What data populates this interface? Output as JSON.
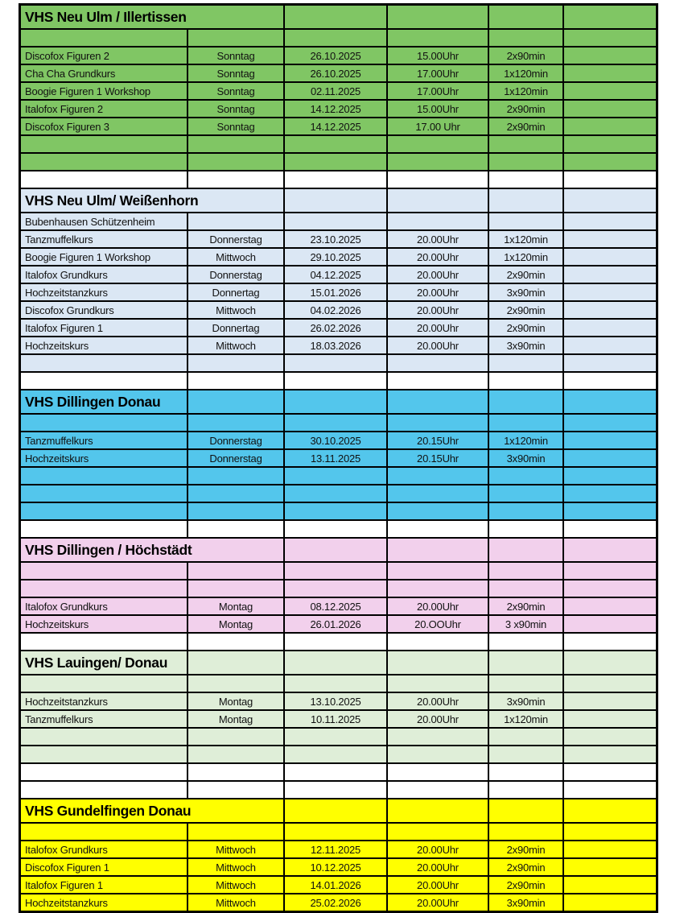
{
  "document": {
    "kind": "course-schedule-table"
  },
  "colors": {
    "border": "#000000",
    "page_background": "#ffffff"
  },
  "table": {
    "column_roles": [
      "course",
      "weekday",
      "date",
      "time",
      "duration",
      "notes"
    ],
    "sections": [
      {
        "title": "VHS Neu Ulm / Illertissen",
        "fill": "#80C664",
        "title_colspan": 2,
        "rows": [
          {
            "cells": [
              "",
              "",
              "",
              "",
              "",
              ""
            ]
          },
          {
            "cells": [
              "Discofox Figuren 2",
              "Sonntag",
              "26.10.2025",
              "15.00Uhr",
              "2x90min",
              ""
            ]
          },
          {
            "cells": [
              "Cha Cha Grundkurs",
              "Sonntag",
              "26.10.2025",
              "17.00Uhr",
              "1x120min",
              ""
            ]
          },
          {
            "cells": [
              "Boogie Figuren 1 Workshop",
              "Sonntag",
              "02.11.2025",
              "17.00Uhr",
              "1x120min",
              ""
            ]
          },
          {
            "cells": [
              "Italofox Figuren 2",
              "Sonntag",
              "14.12.2025",
              "15.00Uhr",
              "2x90min",
              ""
            ]
          },
          {
            "cells": [
              "Discofox Figuren 3",
              "Sonntag",
              "14.12.2025",
              "17.00 Uhr",
              "2x90min",
              ""
            ]
          },
          {
            "cells": [
              "",
              "",
              "",
              "",
              "",
              ""
            ]
          },
          {
            "cells": [
              "",
              "",
              "",
              "",
              "",
              ""
            ]
          }
        ],
        "white_rows_after": 1
      },
      {
        "title": "VHS Neu Ulm/ Weißenhorn",
        "fill": "#DBE7F4",
        "title_colspan": 2,
        "rows": [
          {
            "cells": [
              "Bubenhausen Schützenheim",
              "",
              "",
              "",
              "",
              ""
            ]
          },
          {
            "cells": [
              "Tanzmuffelkurs",
              "Donnerstag",
              "23.10.2025",
              "20.00Uhr",
              "1x120min",
              ""
            ]
          },
          {
            "cells": [
              "Boogie Figuren 1 Workshop",
              "Mittwoch",
              "29.10.2025",
              "20.00Uhr",
              "1x120min",
              ""
            ]
          },
          {
            "cells": [
              "Italofox Grundkurs",
              "Donnerstag",
              "04.12.2025",
              "20.00Uhr",
              "2x90min",
              ""
            ]
          },
          {
            "cells": [
              "Hochzeitstanzkurs",
              "Donnertag",
              "15.01.2026",
              "20.00Uhr",
              "3x90min",
              ""
            ]
          },
          {
            "cells": [
              "Discofox Grundkurs",
              "Mittwoch",
              "04.02.2026",
              "20.00Uhr",
              "2x90min",
              ""
            ]
          },
          {
            "cells": [
              "Italofox Figuren 1",
              "Donnertag",
              "26.02.2026",
              "20.00Uhr",
              "2x90min",
              ""
            ]
          },
          {
            "cells": [
              "Hochzeitskurs",
              "Mittwoch",
              "18.03.2026",
              "20.00Uhr",
              "3x90min",
              ""
            ]
          },
          {
            "cells": [
              "",
              "",
              "",
              "",
              "",
              ""
            ]
          }
        ],
        "white_rows_after": 1
      },
      {
        "title": "VHS Dillingen Donau",
        "fill": "#53C6EC",
        "title_colspan": 1,
        "rows": [
          {
            "cells": [
              "",
              "",
              "",
              "",
              "",
              ""
            ]
          },
          {
            "cells": [
              "Tanzmuffelkurs",
              "Donnerstag",
              "30.10.2025",
              "20.15Uhr",
              "1x120min",
              ""
            ]
          },
          {
            "cells": [
              "Hochzeitskurs",
              "Donnerstag",
              "13.11.2025",
              "20.15Uhr",
              "3x90min",
              ""
            ]
          },
          {
            "cells": [
              "",
              "",
              "",
              "",
              "",
              ""
            ]
          },
          {
            "cells": [
              "",
              "",
              "",
              "",
              "",
              ""
            ]
          },
          {
            "cells": [
              "",
              "",
              "",
              "",
              "",
              ""
            ]
          }
        ],
        "white_rows_after": 1
      },
      {
        "title": "VHS Dillingen / Höchstädt",
        "fill": "#F2D0EC",
        "title_colspan": 2,
        "rows": [
          {
            "cells": [
              "",
              "",
              "",
              "",
              "",
              ""
            ]
          },
          {
            "cells": [
              "",
              "",
              "",
              "",
              "",
              ""
            ]
          },
          {
            "cells": [
              "Italofox Grundkurs",
              "Montag",
              "08.12.2025",
              "20.00Uhr",
              "2x90min",
              ""
            ]
          },
          {
            "cells": [
              "Hochzeitskurs",
              "Montag",
              "26.01.2026",
              "20.OOUhr",
              "3 x90min",
              ""
            ]
          }
        ],
        "white_rows_after": 1
      },
      {
        "title": "VHS Lauingen/ Donau",
        "fill": "#DFEED8",
        "title_colspan": 1,
        "rows": [
          {
            "cells": [
              "",
              "",
              "",
              "",
              "",
              ""
            ]
          },
          {
            "cells": [
              "Hochzeitstanzkurs",
              "Montag",
              "13.10.2025",
              "20.00Uhr",
              "3x90min",
              ""
            ]
          },
          {
            "cells": [
              "Tanzmuffelkurs",
              "Montag",
              "10.11.2025",
              "20.00Uhr",
              "1x120min",
              ""
            ]
          },
          {
            "cells": [
              "",
              "",
              "",
              "",
              "",
              ""
            ]
          },
          {
            "cells": [
              "",
              "",
              "",
              "",
              "",
              ""
            ]
          }
        ],
        "white_rows_after": 2
      },
      {
        "title": "VHS Gundelfingen Donau",
        "fill": "#FFFF00",
        "title_colspan": 2,
        "rows": [
          {
            "cells": [
              "",
              "",
              "",
              "",
              "",
              ""
            ]
          },
          {
            "cells": [
              "Italofox Grundkurs",
              "Mittwoch",
              "12.11.2025",
              "20.00Uhr",
              "2x90min",
              ""
            ]
          },
          {
            "cells": [
              "Discofox Figuren 1",
              "Mittwoch",
              "10.12.2025",
              "20.00Uhr",
              "2x90min",
              ""
            ]
          },
          {
            "cells": [
              "Italofox Figuren 1",
              "Mittwoch",
              "14.01.2026",
              "20.00Uhr",
              "2x90min",
              ""
            ]
          },
          {
            "cells": [
              "Hochzeitstanzkurs",
              "Mittwoch",
              "25.02.2026",
              "20.00Uhr",
              "3x90min",
              ""
            ]
          }
        ],
        "white_rows_after": 0
      }
    ]
  }
}
